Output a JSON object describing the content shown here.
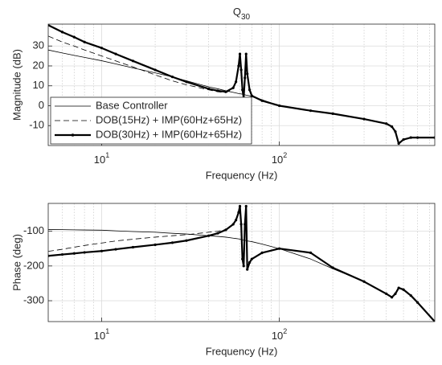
{
  "chart_data": [
    {
      "type": "line",
      "title": "Q",
      "title_subscript": "30",
      "xlabel": "Frequency (Hz)",
      "ylabel": "Magnitude (dB)",
      "xscale": "log",
      "xlim": [
        5,
        750
      ],
      "ylim": [
        -20,
        41
      ],
      "xticks": [
        {
          "value": 10,
          "label": "10",
          "exponent": "1"
        },
        {
          "value": 100,
          "label": "10",
          "exponent": "2"
        }
      ],
      "yticks": [
        -10,
        0,
        10,
        20,
        30
      ],
      "grid": true,
      "minor_grid": true,
      "legend": "lower left",
      "x": [
        5,
        6,
        7,
        8,
        10,
        12,
        15,
        20,
        25,
        30,
        40,
        45,
        50,
        55,
        57,
        59,
        60,
        61,
        62,
        63,
        64,
        65,
        66,
        68,
        70,
        80,
        100,
        150,
        200,
        300,
        400,
        430,
        450,
        470,
        500,
        550,
        600,
        750
      ],
      "series": [
        {
          "name": "Base Controller",
          "color": "#000000",
          "linestyle": "solid",
          "linewidth": 0.8,
          "values": [
            28,
            26.5,
            25.3,
            24.3,
            22.6,
            21,
            19,
            16.5,
            14.5,
            12.5,
            9.5,
            8.5,
            7.5,
            6.7,
            6.4,
            6.1,
            6,
            5.9,
            5.8,
            5.6,
            5.5,
            5.3,
            5.2,
            5,
            4.5,
            3,
            0,
            -2.5,
            -4,
            -6.7,
            -9,
            -10.5,
            -13,
            -19,
            -17,
            -16,
            -16,
            -16
          ]
        },
        {
          "name": "DOB(15Hz) + IMP(60Hz+65Hz)",
          "color": "#000000",
          "linestyle": "dashed",
          "linewidth": 0.8,
          "values": [
            35,
            32,
            30,
            28,
            25,
            22.5,
            19.5,
            15.5,
            12.5,
            10.5,
            8,
            7,
            6.5,
            8.5,
            11.5,
            19.5,
            26,
            17,
            7,
            3.5,
            13,
            26,
            15,
            7.5,
            5,
            2.5,
            0,
            -2.5,
            -4,
            -6.7,
            -9,
            -10.5,
            -13,
            -19,
            -17,
            -16,
            -16,
            -16
          ]
        },
        {
          "name": "DOB(30Hz) + IMP(60Hz+65Hz)",
          "color": "#000000",
          "linestyle": "solid",
          "linewidth": 2.2,
          "marker": "dot",
          "values": [
            40.5,
            37,
            34.5,
            32,
            29,
            26,
            22.5,
            18,
            14.5,
            12,
            8.5,
            7.5,
            7,
            9,
            12,
            20,
            26,
            18,
            8,
            4,
            14,
            26,
            16,
            8,
            5,
            2.5,
            0,
            -2.5,
            -4,
            -6.7,
            -9,
            -10.5,
            -13,
            -19,
            -17,
            -16,
            -16,
            -16
          ]
        }
      ]
    },
    {
      "type": "line",
      "xlabel": "Frequency (Hz)",
      "ylabel": "Phase (deg)",
      "xscale": "log",
      "xlim": [
        5,
        750
      ],
      "ylim": [
        -360,
        -20
      ],
      "xticks": [
        {
          "value": 10,
          "label": "10",
          "exponent": "1"
        },
        {
          "value": 100,
          "label": "10",
          "exponent": "2"
        }
      ],
      "yticks": [
        -300,
        -200,
        -100
      ],
      "grid": true,
      "minor_grid": true,
      "x": [
        5,
        6,
        7,
        8,
        10,
        12,
        15,
        20,
        25,
        30,
        40,
        45,
        50,
        55,
        57,
        59,
        60,
        61,
        62,
        63,
        64,
        65,
        66,
        68,
        70,
        80,
        100,
        150,
        200,
        300,
        400,
        430,
        450,
        470,
        500,
        550,
        600,
        750
      ],
      "series": [
        {
          "color": "#000000",
          "linestyle": "solid",
          "linewidth": 0.8,
          "values": [
            -95,
            -95.5,
            -96,
            -96.5,
            -97,
            -99,
            -101,
            -103,
            -106,
            -108,
            -113,
            -115,
            -117,
            -120,
            -121,
            -122,
            -123,
            -124,
            -125,
            -126,
            -126,
            -127,
            -128,
            -129,
            -130,
            -137,
            -150,
            -180,
            -208,
            -245,
            -280,
            -290,
            -280,
            -263,
            -268,
            -285,
            -305,
            -360
          ]
        },
        {
          "color": "#000000",
          "linestyle": "dashed",
          "linewidth": 0.8,
          "values": [
            -158,
            -152,
            -146,
            -141,
            -134,
            -128,
            -123,
            -117,
            -113,
            -110,
            -103,
            -100,
            -95,
            -82,
            -70,
            -48,
            -28,
            -80,
            -180,
            -200,
            -80,
            -28,
            -210,
            -190,
            -180,
            -162,
            -150,
            -162,
            -205,
            -245,
            -280,
            -290,
            -280,
            -263,
            -268,
            -285,
            -305,
            -360
          ]
        },
        {
          "color": "#000000",
          "linestyle": "solid",
          "linewidth": 2.2,
          "marker": "dot",
          "values": [
            -171,
            -167,
            -164,
            -161,
            -157,
            -152,
            -146,
            -139,
            -133,
            -127,
            -113,
            -106,
            -96,
            -80,
            -68,
            -46,
            -28,
            -80,
            -180,
            -200,
            -80,
            -28,
            -210,
            -190,
            -180,
            -162,
            -150,
            -162,
            -205,
            -245,
            -280,
            -290,
            -280,
            -263,
            -268,
            -285,
            -305,
            -360
          ]
        }
      ]
    }
  ]
}
